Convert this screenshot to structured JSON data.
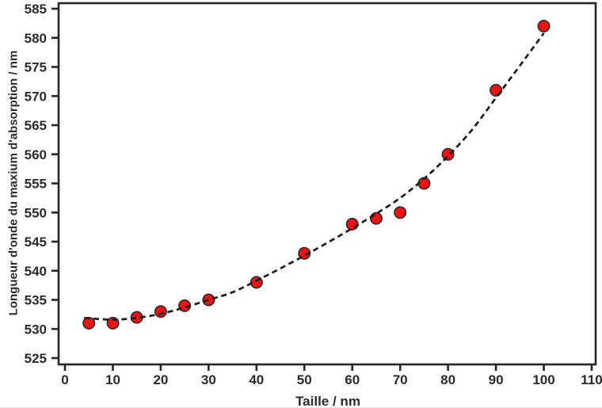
{
  "chart_data": {
    "type": "scatter",
    "title": "",
    "xlabel": "Taille / nm",
    "ylabel": "Longueur d'onde du maxium d'absorption / nm",
    "xlim": [
      0,
      110
    ],
    "ylim": [
      525,
      585
    ],
    "x_ticks": [
      0,
      10,
      20,
      30,
      40,
      50,
      60,
      70,
      80,
      90,
      100,
      110
    ],
    "y_ticks": [
      525,
      530,
      535,
      540,
      545,
      550,
      555,
      560,
      565,
      570,
      575,
      580,
      585
    ],
    "grid": false,
    "legend": "none",
    "series": [
      {
        "name": "longueur-d-onde-vs-taille",
        "marker": "circle",
        "points": [
          [
            5,
            531
          ],
          [
            10,
            531
          ],
          [
            15,
            532
          ],
          [
            20,
            533
          ],
          [
            25,
            534
          ],
          [
            30,
            535
          ],
          [
            40,
            538
          ],
          [
            50,
            543
          ],
          [
            60,
            548
          ],
          [
            65,
            549
          ],
          [
            70,
            550
          ],
          [
            75,
            555
          ],
          [
            80,
            560
          ],
          [
            90,
            571
          ],
          [
            100,
            582
          ]
        ]
      }
    ],
    "trend": {
      "style": "dashed",
      "points": [
        [
          4,
          531.9
        ],
        [
          10,
          531.6
        ],
        [
          15,
          531.9
        ],
        [
          20,
          532.6
        ],
        [
          25,
          533.7
        ],
        [
          30,
          535.0
        ],
        [
          35,
          536.3
        ],
        [
          40,
          538.3
        ],
        [
          45,
          540.4
        ],
        [
          50,
          542.6
        ],
        [
          55,
          544.9
        ],
        [
          60,
          547.3
        ],
        [
          65,
          549.8
        ],
        [
          70,
          552.5
        ],
        [
          75,
          555.8
        ],
        [
          80,
          559.7
        ],
        [
          85,
          564.2
        ],
        [
          90,
          569.7
        ],
        [
          95,
          575.2
        ],
        [
          100,
          580.8
        ]
      ]
    },
    "colors": {
      "marker_fill": "#ee1212",
      "marker_edge": "#2a2a2a",
      "trend_line": "#1c1c1c",
      "axis_line": "#262626",
      "tick_text": "#2b2b2b",
      "background": "#ffffff"
    }
  }
}
